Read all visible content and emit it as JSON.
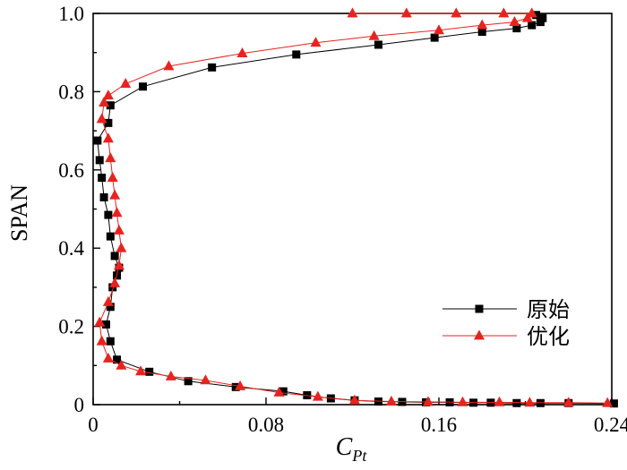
{
  "chart_data": {
    "type": "line",
    "xlabel": "C",
    "xlabel_sub": "Pt",
    "ylabel": "SPAN",
    "xlim": [
      0,
      0.24
    ],
    "ylim": [
      0,
      1.0
    ],
    "x_ticks": [
      "0",
      "0.08",
      "0.16",
      "0.24"
    ],
    "y_ticks": [
      "0",
      "0.2",
      "0.4",
      "0.6",
      "0.8",
      "1.0"
    ],
    "x_tick_values": [
      0,
      0.08,
      0.16,
      0.24
    ],
    "y_tick_values": [
      0,
      0.2,
      0.4,
      0.6,
      0.8,
      1.0
    ],
    "grid": false,
    "legend_position": "center-right",
    "series": [
      {
        "name": "原始",
        "color": "#000000",
        "marker": "square",
        "points": [
          [
            0.241,
            0.003
          ],
          [
            0.22,
            0.004
          ],
          [
            0.207,
            0.004
          ],
          [
            0.196,
            0.004
          ],
          [
            0.184,
            0.005
          ],
          [
            0.176,
            0.005
          ],
          [
            0.165,
            0.006
          ],
          [
            0.154,
            0.006
          ],
          [
            0.143,
            0.007
          ],
          [
            0.132,
            0.008
          ],
          [
            0.121,
            0.011
          ],
          [
            0.11,
            0.016
          ],
          [
            0.099,
            0.024
          ],
          [
            0.088,
            0.034
          ],
          [
            0.066,
            0.045
          ],
          [
            0.044,
            0.06
          ],
          [
            0.026,
            0.084
          ],
          [
            0.011,
            0.115
          ],
          [
            0.008,
            0.162
          ],
          [
            0.006,
            0.205
          ],
          [
            0.008,
            0.25
          ],
          [
            0.009,
            0.3
          ],
          [
            0.011,
            0.33
          ],
          [
            0.012,
            0.35
          ],
          [
            0.01,
            0.38
          ],
          [
            0.008,
            0.43
          ],
          [
            0.007,
            0.485
          ],
          [
            0.005,
            0.53
          ],
          [
            0.004,
            0.58
          ],
          [
            0.003,
            0.625
          ],
          [
            0.002,
            0.675
          ],
          [
            0.007,
            0.72
          ],
          [
            0.008,
            0.765
          ],
          [
            0.023,
            0.813
          ],
          [
            0.055,
            0.862
          ],
          [
            0.094,
            0.895
          ],
          [
            0.132,
            0.92
          ],
          [
            0.158,
            0.938
          ],
          [
            0.18,
            0.953
          ],
          [
            0.196,
            0.962
          ],
          [
            0.203,
            0.97
          ],
          [
            0.207,
            0.978
          ],
          [
            0.208,
            0.988
          ],
          [
            0.205,
            0.996
          ]
        ]
      },
      {
        "name": "优化",
        "color": "#e8231f",
        "marker": "triangle",
        "points": [
          [
            0.238,
            0.004
          ],
          [
            0.22,
            0.005
          ],
          [
            0.202,
            0.005
          ],
          [
            0.188,
            0.006
          ],
          [
            0.171,
            0.006
          ],
          [
            0.155,
            0.007
          ],
          [
            0.138,
            0.008
          ],
          [
            0.121,
            0.011
          ],
          [
            0.104,
            0.02
          ],
          [
            0.086,
            0.031
          ],
          [
            0.068,
            0.047
          ],
          [
            0.052,
            0.062
          ],
          [
            0.036,
            0.072
          ],
          [
            0.022,
            0.085
          ],
          [
            0.013,
            0.1
          ],
          [
            0.007,
            0.118
          ],
          [
            0.004,
            0.162
          ],
          [
            0.003,
            0.21
          ],
          [
            0.007,
            0.262
          ],
          [
            0.01,
            0.31
          ],
          [
            0.012,
            0.355
          ],
          [
            0.013,
            0.4
          ],
          [
            0.012,
            0.445
          ],
          [
            0.011,
            0.49
          ],
          [
            0.01,
            0.535
          ],
          [
            0.009,
            0.58
          ],
          [
            0.008,
            0.63
          ],
          [
            0.007,
            0.68
          ],
          [
            0.004,
            0.73
          ],
          [
            0.005,
            0.772
          ],
          [
            0.007,
            0.79
          ],
          [
            0.015,
            0.82
          ],
          [
            0.035,
            0.865
          ],
          [
            0.069,
            0.898
          ],
          [
            0.103,
            0.925
          ],
          [
            0.13,
            0.942
          ],
          [
            0.16,
            0.957
          ],
          [
            0.18,
            0.97
          ],
          [
            0.195,
            0.978
          ],
          [
            0.201,
            0.988
          ],
          [
            0.203,
            1.0
          ],
          [
            0.19,
            1.0
          ],
          [
            0.168,
            1.0
          ],
          [
            0.145,
            1.0
          ],
          [
            0.12,
            1.0
          ]
        ]
      }
    ]
  }
}
